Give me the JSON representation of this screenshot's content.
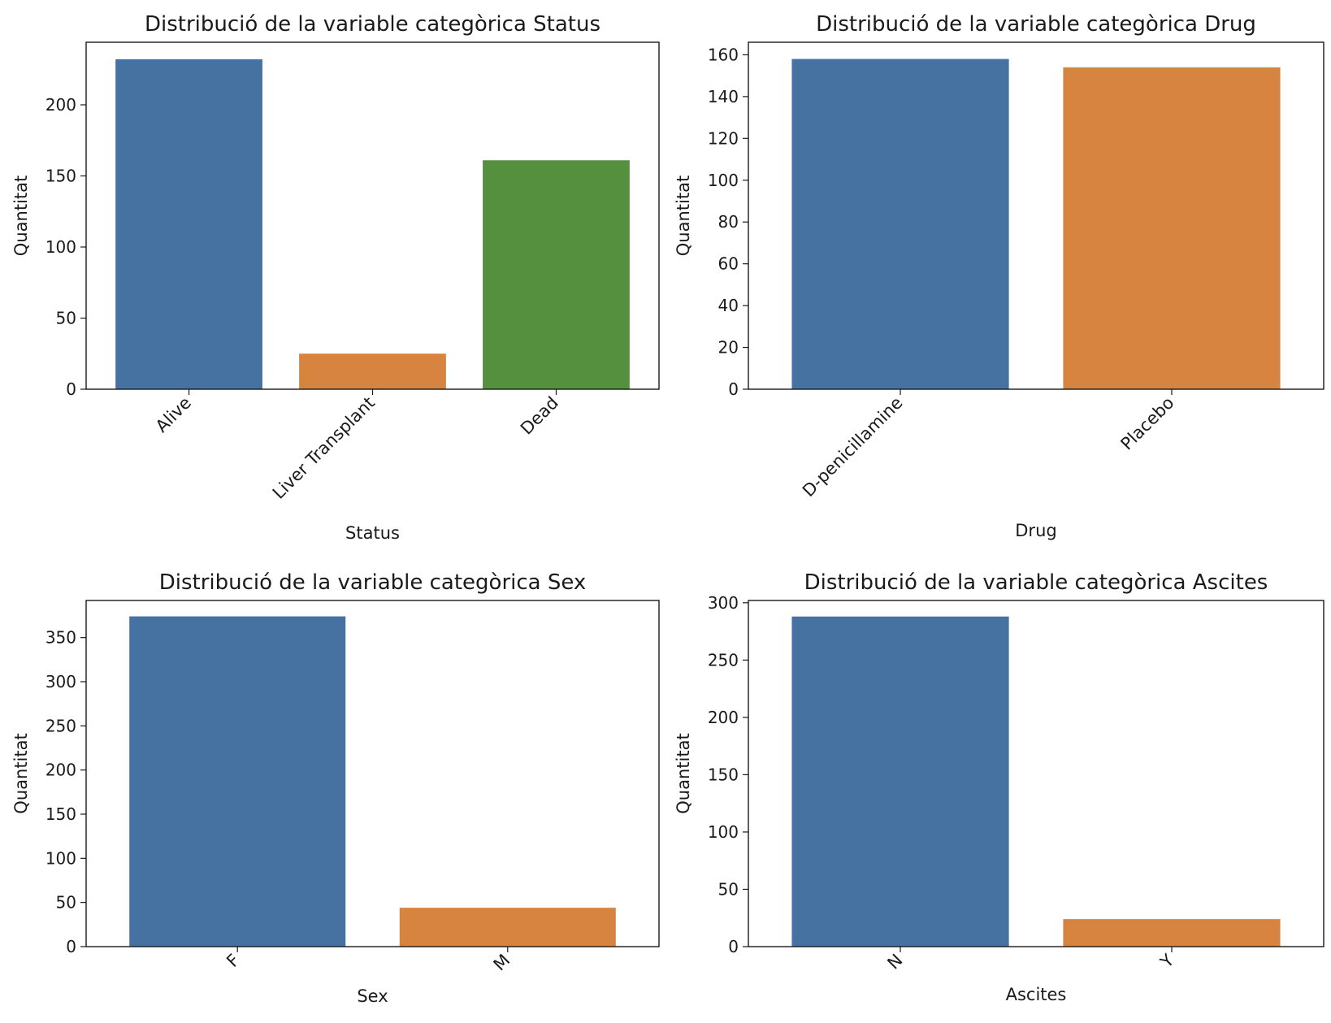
{
  "chart_data": [
    {
      "type": "bar",
      "title": "Distribució de la variable categòrica Status",
      "xlabel": "Status",
      "ylabel": "Quantitat",
      "categories": [
        "Alive",
        "Liver Transplant",
        "Dead"
      ],
      "values": [
        232,
        25,
        161
      ],
      "colors": [
        "#4572a0",
        "#d68440",
        "#55903f"
      ],
      "ylim": [
        0,
        244
      ],
      "yticks": [
        0,
        50,
        100,
        150,
        200
      ],
      "tick_rotation": 45
    },
    {
      "type": "bar",
      "title": "Distribució de la variable categòrica Drug",
      "xlabel": "Drug",
      "ylabel": "Quantitat",
      "categories": [
        "D-penicillamine",
        "Placebo"
      ],
      "values": [
        158,
        154
      ],
      "colors": [
        "#4572a0",
        "#d68440"
      ],
      "ylim": [
        0,
        166
      ],
      "yticks": [
        0,
        20,
        40,
        60,
        80,
        100,
        120,
        140,
        160
      ],
      "tick_rotation": 45
    },
    {
      "type": "bar",
      "title": "Distribució de la variable categòrica Sex",
      "xlabel": "Sex",
      "ylabel": "Quantitat",
      "categories": [
        "F",
        "M"
      ],
      "values": [
        374,
        44
      ],
      "colors": [
        "#4572a0",
        "#d68440"
      ],
      "ylim": [
        0,
        392
      ],
      "yticks": [
        0,
        50,
        100,
        150,
        200,
        250,
        300,
        350
      ],
      "tick_rotation": 45
    },
    {
      "type": "bar",
      "title": "Distribució de la variable categòrica Ascites",
      "xlabel": "Ascites",
      "ylabel": "Quantitat",
      "categories": [
        "N",
        "Y"
      ],
      "values": [
        288,
        24
      ],
      "colors": [
        "#4572a0",
        "#d68440"
      ],
      "ylim": [
        0,
        302
      ],
      "yticks": [
        0,
        50,
        100,
        150,
        200,
        250,
        300
      ],
      "tick_rotation": 45
    }
  ]
}
